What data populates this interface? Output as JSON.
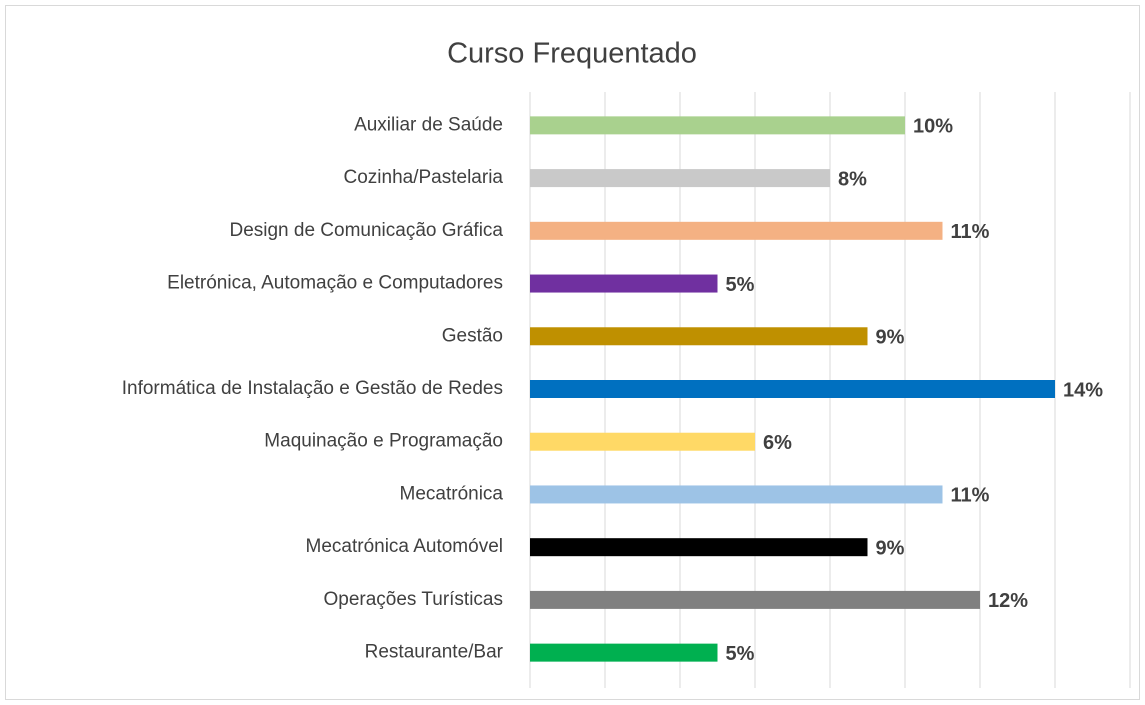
{
  "chart_data": {
    "type": "barh",
    "title": "Curso Frequentado",
    "categories": [
      "Auxiliar de Saúde",
      "Cozinha/Pastelaria",
      "Design de Comunicação Gráfica",
      "Eletrónica, Automação e Computadores",
      "Gestão",
      "Informática de Instalação e Gestão de Redes",
      "Maquinação e Programação",
      "Mecatrónica",
      "Mecatrónica Automóvel",
      "Operações Turísticas",
      "Restaurante/Bar"
    ],
    "values": [
      10,
      8,
      11,
      5,
      9,
      14,
      6,
      11,
      9,
      12,
      5
    ],
    "value_labels": [
      "10%",
      "8%",
      "11%",
      "5%",
      "9%",
      "14%",
      "6%",
      "11%",
      "9%",
      "12%",
      "5%"
    ],
    "colors": [
      "#a9d18e",
      "#c9c9c9",
      "#f4b183",
      "#7030a0",
      "#bf9000",
      "#0070c0",
      "#ffd966",
      "#9dc3e6",
      "#000000",
      "#808080",
      "#00b050"
    ],
    "xlim": [
      0,
      16
    ],
    "xticks": [
      0,
      2,
      4,
      6,
      8,
      10,
      12,
      14,
      16
    ],
    "grid": true
  }
}
